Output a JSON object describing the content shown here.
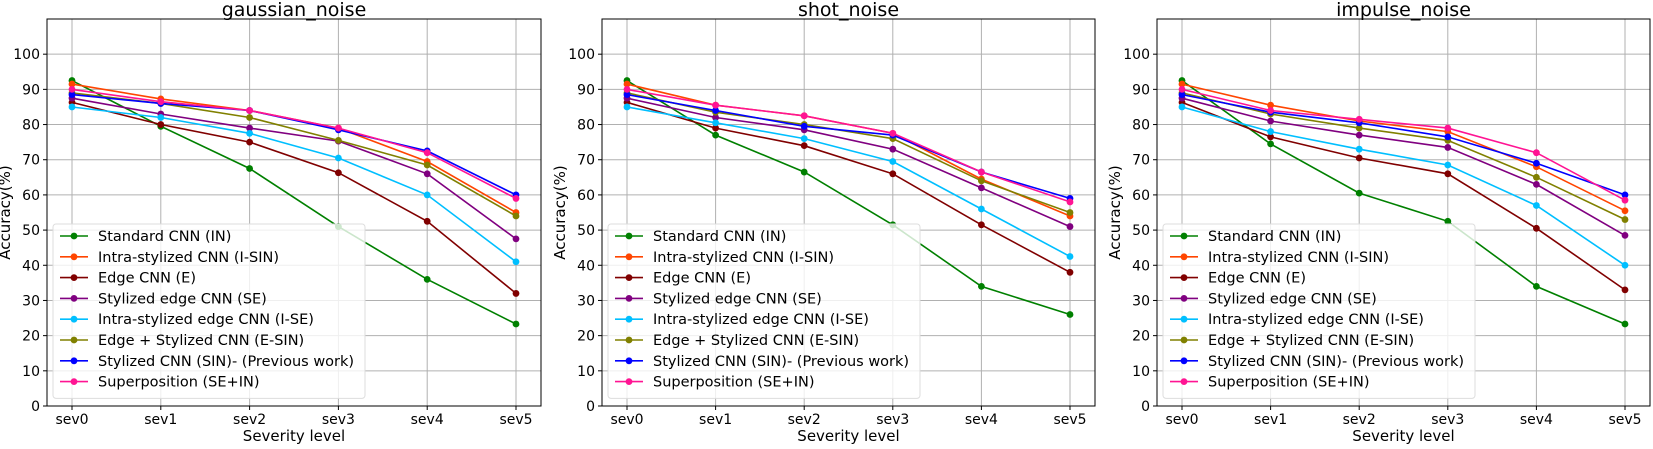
{
  "chart_data": {
    "type": "line",
    "categories": [
      "sev0",
      "sev1",
      "sev2",
      "sev3",
      "sev4",
      "sev5"
    ],
    "xlabel": "Severity level",
    "ylabel": "Accuracy(%)",
    "ylim": [
      0,
      110
    ],
    "yticks": [
      0,
      10,
      20,
      30,
      40,
      50,
      60,
      70,
      80,
      90,
      100
    ],
    "grid": true,
    "legend_position": "lower-left",
    "series_styles": [
      {
        "name": "Standard CNN (IN)",
        "color": "#008000"
      },
      {
        "name": "Intra-stylized CNN (I-SIN)",
        "color": "#ff4500"
      },
      {
        "name": "Edge CNN (E)",
        "color": "#800000"
      },
      {
        "name": "Stylized edge CNN (SE)",
        "color": "#800080"
      },
      {
        "name": "Intra-stylized edge CNN (I-SE)",
        "color": "#00bfff"
      },
      {
        "name": "Edge + Stylized CNN (E-SIN)",
        "color": "#808000"
      },
      {
        "name": "Stylized CNN (SIN)- (Previous work)",
        "color": "#0000ff"
      },
      {
        "name": "Superposition (SE+IN)",
        "color": "#ff1493"
      }
    ],
    "panels": [
      {
        "title": "gaussian_noise",
        "series": [
          {
            "name": "Standard CNN (IN)",
            "values": [
              92.5,
              79.5,
              67.5,
              51.0,
              36.0,
              23.3
            ]
          },
          {
            "name": "Intra-stylized CNN (I-SIN)",
            "values": [
              91.5,
              87.3,
              84.0,
              79.0,
              69.5,
              55.0
            ]
          },
          {
            "name": "Edge CNN (E)",
            "values": [
              86.3,
              80.0,
              75.0,
              66.3,
              52.5,
              32.0
            ]
          },
          {
            "name": "Stylized edge CNN (SE)",
            "values": [
              87.5,
              83.0,
              79.0,
              75.3,
              66.0,
              47.5
            ]
          },
          {
            "name": "Intra-stylized edge CNN (I-SE)",
            "values": [
              85.0,
              82.0,
              77.5,
              70.5,
              60.0,
              41.0
            ]
          },
          {
            "name": "Edge + Stylized CNN (E-SIN)",
            "values": [
              89.0,
              86.0,
              82.0,
              75.5,
              68.5,
              54.0
            ]
          },
          {
            "name": "Stylized CNN (SIN)- (Previous work)",
            "values": [
              88.5,
              86.0,
              84.0,
              78.5,
              72.5,
              60.0
            ]
          },
          {
            "name": "Superposition (SE+IN)",
            "values": [
              90.0,
              86.5,
              84.0,
              79.0,
              72.0,
              59.0
            ]
          }
        ]
      },
      {
        "title": "shot_noise",
        "series": [
          {
            "name": "Standard CNN (IN)",
            "values": [
              92.5,
              77.0,
              66.5,
              51.5,
              34.0,
              26.0
            ]
          },
          {
            "name": "Intra-stylized CNN (I-SIN)",
            "values": [
              91.5,
              85.5,
              82.5,
              77.5,
              64.5,
              54.0
            ]
          },
          {
            "name": "Edge CNN (E)",
            "values": [
              86.3,
              79.0,
              74.0,
              66.0,
              51.5,
              38.0
            ]
          },
          {
            "name": "Stylized edge CNN (SE)",
            "values": [
              87.5,
              82.0,
              78.5,
              73.0,
              62.0,
              51.0
            ]
          },
          {
            "name": "Intra-stylized edge CNN (I-SE)",
            "values": [
              85.0,
              80.5,
              76.0,
              69.5,
              56.0,
              42.5
            ]
          },
          {
            "name": "Edge + Stylized CNN (E-SIN)",
            "values": [
              89.0,
              83.5,
              80.0,
              76.0,
              64.0,
              55.0
            ]
          },
          {
            "name": "Stylized CNN (SIN)- (Previous work)",
            "values": [
              88.5,
              84.0,
              79.5,
              77.0,
              66.5,
              59.0
            ]
          },
          {
            "name": "Superposition (SE+IN)",
            "values": [
              90.0,
              85.5,
              82.5,
              77.5,
              66.5,
              58.0
            ]
          }
        ]
      },
      {
        "title": "impulse_noise",
        "series": [
          {
            "name": "Standard CNN (IN)",
            "values": [
              92.5,
              74.5,
              60.5,
              52.5,
              34.0,
              23.3
            ]
          },
          {
            "name": "Intra-stylized CNN (I-SIN)",
            "values": [
              91.5,
              85.5,
              81.0,
              78.0,
              68.0,
              55.5
            ]
          },
          {
            "name": "Edge CNN (E)",
            "values": [
              86.3,
              76.5,
              70.5,
              66.0,
              50.5,
              33.0
            ]
          },
          {
            "name": "Stylized edge CNN (SE)",
            "values": [
              87.5,
              81.0,
              77.0,
              73.5,
              63.0,
              48.5
            ]
          },
          {
            "name": "Intra-stylized edge CNN (I-SE)",
            "values": [
              85.0,
              78.0,
              73.0,
              68.5,
              57.0,
              40.0
            ]
          },
          {
            "name": "Edge + Stylized CNN (E-SIN)",
            "values": [
              89.0,
              83.0,
              79.0,
              75.5,
              65.0,
              53.0
            ]
          },
          {
            "name": "Stylized CNN (SIN)- (Previous work)",
            "values": [
              88.5,
              83.5,
              80.5,
              76.5,
              69.0,
              60.0
            ]
          },
          {
            "name": "Superposition (SE+IN)",
            "values": [
              90.0,
              84.0,
              81.5,
              79.0,
              72.0,
              58.5
            ]
          }
        ]
      }
    ]
  }
}
